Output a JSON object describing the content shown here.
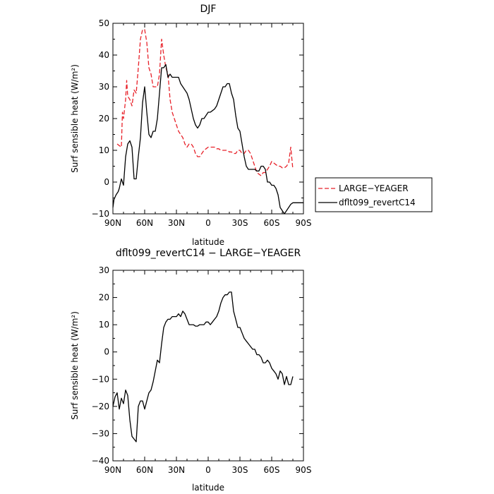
{
  "chart_data": [
    {
      "type": "line",
      "title": "DJF",
      "xlabel": "latitude",
      "ylabel": "Surf sensible heat (W/m²)",
      "xlim": [
        90,
        -90
      ],
      "ylim": [
        -10,
        50
      ],
      "x_tick_values": [
        90,
        60,
        30,
        0,
        -30,
        -60,
        -90
      ],
      "x_ticks": [
        "90N",
        "60N",
        "30N",
        "0",
        "30S",
        "60S",
        "90S"
      ],
      "y_ticks": [
        "50",
        "40",
        "30",
        "20",
        "10",
        "0",
        "−10"
      ],
      "y_tick_values": [
        50,
        40,
        30,
        20,
        10,
        0,
        -10
      ],
      "legend_position": "right",
      "series": [
        {
          "name": "LARGE−YEAGER",
          "color": "#e8222a",
          "style": "dashed",
          "x": [
            86,
            84,
            82,
            81,
            80,
            78,
            77,
            76,
            74,
            72,
            70,
            68,
            66,
            64,
            62,
            60,
            58,
            56,
            54,
            52,
            50,
            48,
            46,
            44,
            42,
            40,
            38,
            36,
            34,
            32,
            30,
            28,
            26,
            24,
            22,
            20,
            18,
            16,
            14,
            12,
            10,
            8,
            6,
            4,
            2,
            0,
            -2,
            -4,
            -6,
            -8,
            -10,
            -12,
            -14,
            -16,
            -18,
            -20,
            -22,
            -24,
            -26,
            -28,
            -30,
            -32,
            -34,
            -36,
            -38,
            -40,
            -42,
            -44,
            -46,
            -48,
            -50,
            -52,
            -54,
            -56,
            -58,
            -60,
            -62,
            -64,
            -66,
            -68,
            -70,
            -72,
            -74,
            -76,
            -78,
            -80
          ],
          "y": [
            12,
            11.5,
            11,
            22,
            20,
            26,
            32,
            27,
            26,
            24,
            29,
            28,
            36,
            45,
            48,
            48,
            44,
            36,
            34,
            30,
            30,
            30,
            34,
            45,
            40,
            36,
            34,
            26,
            22,
            20,
            18,
            16,
            15,
            14,
            12,
            11,
            12,
            12,
            11,
            9,
            8,
            8,
            9,
            10,
            10.5,
            11,
            11,
            11,
            11,
            10.5,
            10.5,
            10,
            10,
            10,
            10,
            9.5,
            9.5,
            9,
            9,
            10,
            10,
            9,
            9,
            10,
            10,
            9,
            7,
            5,
            3,
            2.5,
            2,
            3,
            3,
            4,
            5,
            6.5,
            6,
            5.5,
            5,
            5,
            4.5,
            4.5,
            5,
            6,
            11,
            4
          ]
        },
        {
          "name": "dflt099_revertC14",
          "color": "#000000",
          "style": "solid",
          "x": [
            90,
            89,
            87,
            85,
            84,
            82,
            80,
            78,
            76,
            74,
            72,
            70,
            68,
            66,
            64,
            62,
            60,
            58,
            56,
            54,
            52,
            50,
            48,
            46,
            44,
            42,
            40,
            38,
            36,
            34,
            32,
            30,
            28,
            26,
            24,
            22,
            20,
            18,
            16,
            14,
            12,
            10,
            8,
            6,
            4,
            2,
            0,
            -2,
            -4,
            -6,
            -8,
            -10,
            -12,
            -14,
            -16,
            -18,
            -20,
            -22,
            -24,
            -26,
            -28,
            -30,
            -32,
            -34,
            -36,
            -38,
            -40,
            -42,
            -44,
            -46,
            -48,
            -50,
            -52,
            -54,
            -56,
            -58,
            -60,
            -62,
            -64,
            -66,
            -68,
            -70,
            -72,
            -74,
            -76,
            -78,
            -80,
            -82,
            -84,
            -86,
            -88,
            -90
          ],
          "y": [
            -8,
            -5.5,
            -4,
            -3,
            -2,
            1,
            -1,
            8,
            12,
            13,
            11,
            1,
            1,
            8,
            14,
            25,
            30,
            22,
            15,
            14,
            16,
            16,
            20,
            28,
            36,
            36,
            37,
            33,
            34,
            33,
            33,
            33,
            33,
            31,
            30,
            29,
            28,
            26,
            23,
            20,
            18,
            17,
            18,
            20,
            20,
            21,
            22,
            22,
            22.5,
            23,
            24,
            26,
            28,
            30,
            30,
            31,
            31,
            28,
            26,
            21,
            17,
            16,
            12,
            8,
            5,
            4,
            4,
            4,
            4,
            3.5,
            3.5,
            5,
            5,
            4,
            0,
            0,
            -1,
            -1,
            -2,
            -4,
            -8,
            -9,
            -10,
            -9,
            -8,
            -7,
            -6.5,
            -6.5,
            -6.5,
            -6.5,
            -6.5,
            -6.5
          ]
        }
      ]
    },
    {
      "type": "line",
      "title": "dflt099_revertC14 − LARGE−YEAGER",
      "xlabel": "latitude",
      "ylabel": "Surf sensible heat (W/m²)",
      "xlim": [
        90,
        -90
      ],
      "ylim": [
        -40,
        30
      ],
      "x_tick_values": [
        90,
        60,
        30,
        0,
        -30,
        -60,
        -90
      ],
      "x_ticks": [
        "90N",
        "60N",
        "30N",
        "0",
        "30S",
        "60S",
        "90S"
      ],
      "y_ticks": [
        "30",
        "20",
        "10",
        "0",
        "−10",
        "−20",
        "−30",
        "−40"
      ],
      "y_tick_values": [
        30,
        20,
        10,
        0,
        -10,
        -20,
        -30,
        -40
      ],
      "series": [
        {
          "color": "#000000",
          "style": "solid",
          "x": [
            90,
            88,
            86,
            84,
            82,
            80,
            78,
            76,
            74,
            72,
            70,
            68,
            66,
            64,
            62,
            60,
            58,
            56,
            54,
            52,
            50,
            48,
            46,
            44,
            42,
            40,
            38,
            36,
            34,
            32,
            30,
            28,
            26,
            24,
            22,
            20,
            18,
            16,
            14,
            12,
            10,
            8,
            6,
            4,
            2,
            0,
            -2,
            -4,
            -6,
            -8,
            -10,
            -12,
            -14,
            -16,
            -18,
            -20,
            -22,
            -24,
            -26,
            -28,
            -30,
            -32,
            -34,
            -36,
            -38,
            -40,
            -42,
            -44,
            -46,
            -48,
            -50,
            -52,
            -54,
            -56,
            -58,
            -60,
            -62,
            -64,
            -66,
            -68,
            -70,
            -72,
            -74,
            -76,
            -78,
            -80
          ],
          "y": [
            -20,
            -16.5,
            -15,
            -21,
            -17,
            -19,
            -14,
            -16,
            -25,
            -31,
            -32,
            -33,
            -20,
            -18,
            -18,
            -21,
            -18,
            -15,
            -14,
            -11,
            -7,
            -3,
            -4,
            3,
            9,
            11,
            12,
            12,
            13,
            13,
            13,
            14,
            13,
            15,
            14,
            12,
            10,
            10,
            10,
            9.5,
            9.5,
            10,
            10,
            10,
            11,
            11,
            10,
            11,
            12,
            13,
            15,
            18,
            20,
            21,
            21,
            22,
            22,
            15,
            12,
            9,
            9,
            7,
            5,
            4,
            3,
            2,
            1,
            1,
            -1,
            -1,
            -2,
            -4,
            -4,
            -3,
            -4,
            -6,
            -7,
            -8,
            -10,
            -7,
            -8,
            -12,
            -9,
            -12,
            -12,
            -9
          ]
        }
      ]
    }
  ]
}
